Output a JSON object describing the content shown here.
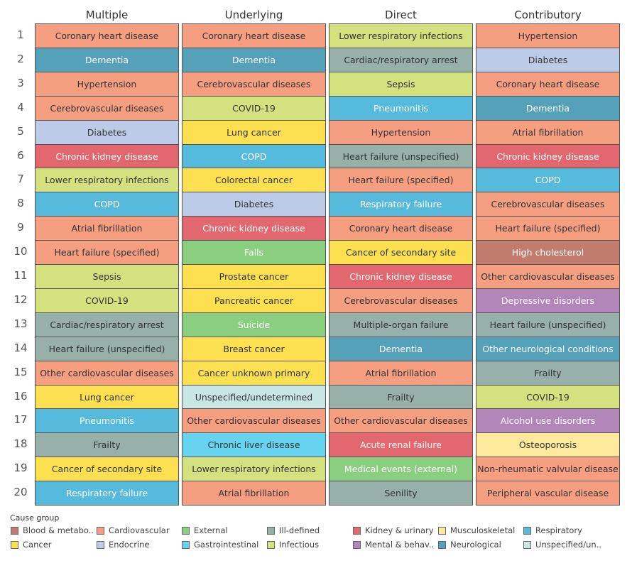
{
  "chart_data": {
    "type": "table",
    "row_labels": [
      "1",
      "2",
      "3",
      "4",
      "5",
      "6",
      "7",
      "8",
      "9",
      "10",
      "11",
      "12",
      "13",
      "14",
      "15",
      "16",
      "17",
      "18",
      "19",
      "20"
    ],
    "columns": [
      {
        "header": "Multiple",
        "items": [
          {
            "label": "Coronary heart disease",
            "group": "Cardiovascular"
          },
          {
            "label": "Dementia",
            "group": "Neurological"
          },
          {
            "label": "Hypertension",
            "group": "Cardiovascular"
          },
          {
            "label": "Cerebrovascular diseases",
            "group": "Cardiovascular"
          },
          {
            "label": "Diabetes",
            "group": "Endocrine"
          },
          {
            "label": "Chronic kidney disease",
            "group": "Kidney & urinary"
          },
          {
            "label": "Lower respiratory infections",
            "group": "Infectious"
          },
          {
            "label": "COPD",
            "group": "Respiratory"
          },
          {
            "label": "Atrial fibrillation",
            "group": "Cardiovascular"
          },
          {
            "label": "Heart failure (specified)",
            "group": "Cardiovascular"
          },
          {
            "label": "Sepsis",
            "group": "Infectious"
          },
          {
            "label": "COVID-19",
            "group": "Infectious"
          },
          {
            "label": "Cardiac/respiratory arrest",
            "group": "Ill-defined"
          },
          {
            "label": "Heart failure (unspecified)",
            "group": "Ill-defined"
          },
          {
            "label": "Other cardiovascular diseases",
            "group": "Cardiovascular"
          },
          {
            "label": "Lung cancer",
            "group": "Cancer"
          },
          {
            "label": "Pneumonitis",
            "group": "Respiratory"
          },
          {
            "label": "Frailty",
            "group": "Ill-defined"
          },
          {
            "label": "Cancer of secondary site",
            "group": "Cancer"
          },
          {
            "label": "Respiratory failure",
            "group": "Respiratory"
          }
        ]
      },
      {
        "header": "Underlying",
        "items": [
          {
            "label": "Coronary heart disease",
            "group": "Cardiovascular"
          },
          {
            "label": "Dementia",
            "group": "Neurological"
          },
          {
            "label": "Cerebrovascular diseases",
            "group": "Cardiovascular"
          },
          {
            "label": "COVID-19",
            "group": "Infectious"
          },
          {
            "label": "Lung cancer",
            "group": "Cancer"
          },
          {
            "label": "COPD",
            "group": "Respiratory"
          },
          {
            "label": "Colorectal cancer",
            "group": "Cancer"
          },
          {
            "label": "Diabetes",
            "group": "Endocrine"
          },
          {
            "label": "Chronic kidney disease",
            "group": "Kidney & urinary"
          },
          {
            "label": "Falls",
            "group": "External"
          },
          {
            "label": "Prostate cancer",
            "group": "Cancer"
          },
          {
            "label": "Pancreatic cancer",
            "group": "Cancer"
          },
          {
            "label": "Suicide",
            "group": "External"
          },
          {
            "label": "Breast cancer",
            "group": "Cancer"
          },
          {
            "label": "Cancer unknown primary",
            "group": "Cancer"
          },
          {
            "label": "Unspecified/undetermined",
            "group": "Unspecified/un.."
          },
          {
            "label": "Other cardiovascular diseases",
            "group": "Cardiovascular"
          },
          {
            "label": "Chronic liver disease",
            "group": "Gastrointestinal"
          },
          {
            "label": "Lower respiratory infections",
            "group": "Infectious"
          },
          {
            "label": "Atrial fibrillation",
            "group": "Cardiovascular"
          }
        ]
      },
      {
        "header": "Direct",
        "items": [
          {
            "label": "Lower respiratory infections",
            "group": "Infectious"
          },
          {
            "label": "Cardiac/respiratory arrest",
            "group": "Ill-defined"
          },
          {
            "label": "Sepsis",
            "group": "Infectious"
          },
          {
            "label": "Pneumonitis",
            "group": "Respiratory"
          },
          {
            "label": "Hypertension",
            "group": "Cardiovascular"
          },
          {
            "label": "Heart failure (unspecified)",
            "group": "Ill-defined"
          },
          {
            "label": "Heart failure (specified)",
            "group": "Cardiovascular"
          },
          {
            "label": "Respiratory failure",
            "group": "Respiratory"
          },
          {
            "label": "Coronary heart disease",
            "group": "Cardiovascular"
          },
          {
            "label": "Cancer of secondary site",
            "group": "Cancer"
          },
          {
            "label": "Chronic kidney disease",
            "group": "Kidney & urinary"
          },
          {
            "label": "Cerebrovascular diseases",
            "group": "Cardiovascular"
          },
          {
            "label": "Multiple-organ failure",
            "group": "Ill-defined"
          },
          {
            "label": "Dementia",
            "group": "Neurological"
          },
          {
            "label": "Atrial fibrillation",
            "group": "Cardiovascular"
          },
          {
            "label": "Frailty",
            "group": "Ill-defined"
          },
          {
            "label": "Other cardiovascular diseases",
            "group": "Cardiovascular"
          },
          {
            "label": "Acute renal failure",
            "group": "Kidney & urinary"
          },
          {
            "label": "Medical events (external)",
            "group": "External"
          },
          {
            "label": "Senility",
            "group": "Ill-defined"
          }
        ]
      },
      {
        "header": "Contributory",
        "items": [
          {
            "label": "Hypertension",
            "group": "Cardiovascular"
          },
          {
            "label": "Diabetes",
            "group": "Endocrine"
          },
          {
            "label": "Coronary heart disease",
            "group": "Cardiovascular"
          },
          {
            "label": "Dementia",
            "group": "Neurological"
          },
          {
            "label": "Atrial fibrillation",
            "group": "Cardiovascular"
          },
          {
            "label": "Chronic kidney disease",
            "group": "Kidney & urinary"
          },
          {
            "label": "COPD",
            "group": "Respiratory"
          },
          {
            "label": "Cerebrovascular diseases",
            "group": "Cardiovascular"
          },
          {
            "label": "Heart failure (specified)",
            "group": "Cardiovascular"
          },
          {
            "label": "High cholesterol",
            "group": "Blood & metabo.."
          },
          {
            "label": "Other cardiovascular diseases",
            "group": "Cardiovascular"
          },
          {
            "label": "Depressive disorders",
            "group": "Mental & behav.."
          },
          {
            "label": "Heart failure (unspecified)",
            "group": "Ill-defined"
          },
          {
            "label": "Other neurological conditions",
            "group": "Neurological"
          },
          {
            "label": "Frailty",
            "group": "Ill-defined"
          },
          {
            "label": "COVID-19",
            "group": "Infectious"
          },
          {
            "label": "Alcohol use disorders",
            "group": "Mental & behav.."
          },
          {
            "label": "Osteoporosis",
            "group": "Musculoskeletal"
          },
          {
            "label": "Non-rheumatic valvular disease",
            "group": "Cardiovascular"
          },
          {
            "label": "Peripheral vascular disease",
            "group": "Cardiovascular"
          }
        ]
      }
    ],
    "legend": {
      "title": "Cause group",
      "placement": "bottom",
      "groups": [
        {
          "name": "Blood & metabo..",
          "color": "#C17C6D",
          "text": "#ffffff"
        },
        {
          "name": "Cardiovascular",
          "color": "#F59F80",
          "text": "#333333"
        },
        {
          "name": "External",
          "color": "#8ACE80",
          "text": "#ffffff"
        },
        {
          "name": "Ill-defined",
          "color": "#97B0A9",
          "text": "#333333"
        },
        {
          "name": "Kidney & urinary",
          "color": "#E2676F",
          "text": "#ffffff"
        },
        {
          "name": "Musculoskeletal",
          "color": "#FDE99C",
          "text": "#333333"
        },
        {
          "name": "Respiratory",
          "color": "#56BADD",
          "text": "#ffffff"
        },
        {
          "name": "Cancer",
          "color": "#FDE050",
          "text": "#333333"
        },
        {
          "name": "Endocrine",
          "color": "#BCCCE8",
          "text": "#333333"
        },
        {
          "name": "Gastrointestinal",
          "color": "#66D4F1",
          "text": "#333333"
        },
        {
          "name": "Infectious",
          "color": "#D3E17F",
          "text": "#333333"
        },
        {
          "name": "Mental & behav..",
          "color": "#B286B8",
          "text": "#ffffff"
        },
        {
          "name": "Neurological",
          "color": "#55A1BA",
          "text": "#ffffff"
        },
        {
          "name": "Unspecified/un..",
          "color": "#C8E6E4",
          "text": "#333333"
        }
      ]
    }
  }
}
